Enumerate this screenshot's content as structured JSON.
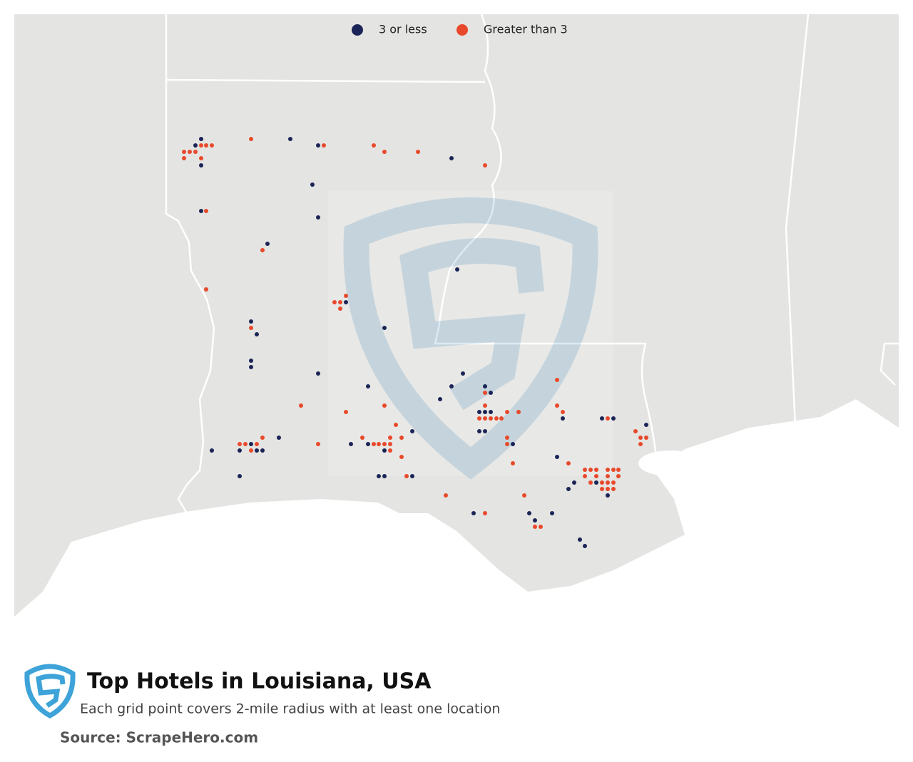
{
  "map": {
    "legend": [
      {
        "name": "3 or less",
        "color": "#1a2456"
      },
      {
        "name": "Greater than 3",
        "color": "#e8492a"
      }
    ]
  },
  "footer": {
    "title": "Top Hotels in Louisiana, USA",
    "subtitle": "Each grid point covers 2-mile radius with at least one location",
    "source": "Source: ScrapeHero.com"
  }
}
